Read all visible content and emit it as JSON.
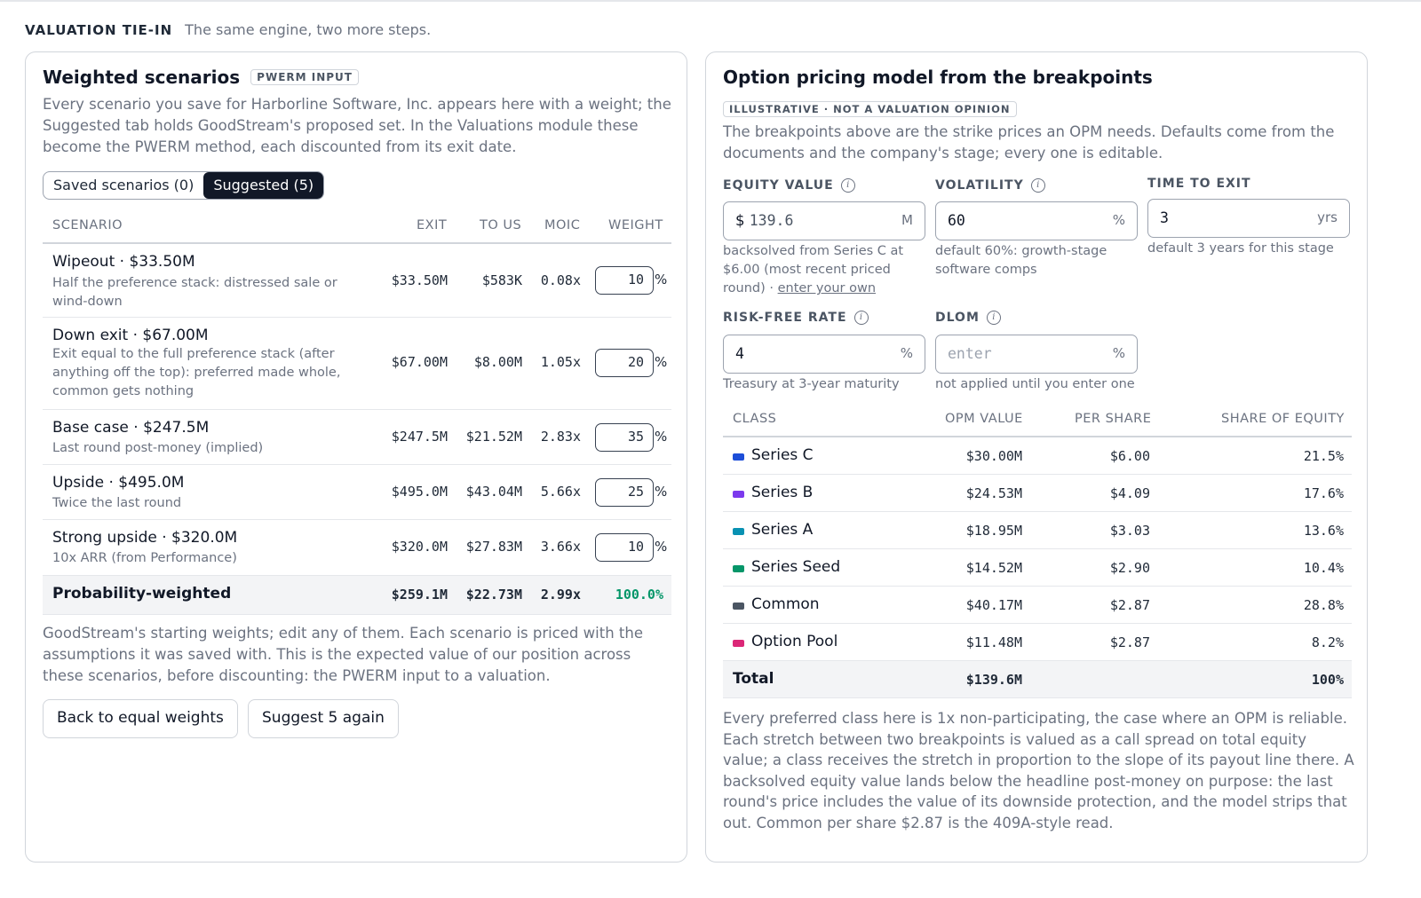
{
  "section": {
    "title": "VALUATION TIE-IN",
    "subtitle": "The same engine, two more steps."
  },
  "left": {
    "title": "Weighted scenarios",
    "badge": "PWERM INPUT",
    "intro": "Every scenario you save for Harborline Software, Inc. appears here with a weight; the Suggested tab holds GoodStream's proposed set. In the Valuations module these become the PWERM method, each discounted from its exit date.",
    "tabs": {
      "saved": "Saved scenarios (0)",
      "suggested": "Suggested (5)"
    },
    "columns": {
      "scenario": "SCENARIO",
      "exit": "EXIT",
      "to_us": "TO US",
      "moic": "MOIC",
      "weight": "WEIGHT"
    },
    "rows": [
      {
        "name": "Wipeout · $33.50M",
        "desc": "Half the preference stack: distressed sale or wind-down",
        "exit": "$33.50M",
        "to_us": "$583K",
        "moic": "0.08x",
        "weight": "10"
      },
      {
        "name": "Down exit · $67.00M",
        "desc": "Exit equal to the full preference stack (after anything off the top): preferred made whole, common gets nothing",
        "exit": "$67.00M",
        "to_us": "$8.00M",
        "moic": "1.05x",
        "weight": "20"
      },
      {
        "name": "Base case · $247.5M",
        "desc": "Last round post-money (implied)",
        "exit": "$247.5M",
        "to_us": "$21.52M",
        "moic": "2.83x",
        "weight": "35"
      },
      {
        "name": "Upside · $495.0M",
        "desc": "Twice the last round",
        "exit": "$495.0M",
        "to_us": "$43.04M",
        "moic": "5.66x",
        "weight": "25"
      },
      {
        "name": "Strong upside · $320.0M",
        "desc": "10x ARR (from Performance)",
        "exit": "$320.0M",
        "to_us": "$27.83M",
        "moic": "3.66x",
        "weight": "10"
      }
    ],
    "pct_sign": "%",
    "total": {
      "name": "Probability-weighted",
      "exit": "$259.1M",
      "to_us": "$22.73M",
      "moic": "2.99x",
      "weight": "100.0%"
    },
    "footnote": "GoodStream's starting weights; edit any of them. Each scenario is priced with the assumptions it was saved with. This is the expected value of our position across these scenarios, before discounting: the PWERM input to a valuation.",
    "buttons": {
      "equal": "Back to equal weights",
      "suggest": "Suggest 5 again"
    }
  },
  "right": {
    "title": "Option pricing model from the breakpoints",
    "badge": "ILLUSTRATIVE · NOT A VALUATION OPINION",
    "intro": "The breakpoints above are the strike prices an OPM needs. Defaults come from the documents and the company's stage; every one is editable.",
    "inputs": {
      "equity": {
        "label": "EQUITY VALUE",
        "prefix": "$",
        "value": "139.6",
        "unit": "M",
        "help": "backsolved from Series C at $6.00 (most recent priced round) · ",
        "link": "enter your own"
      },
      "vol": {
        "label": "VOLATILITY",
        "value": "60",
        "unit": "%",
        "help": "default 60%: growth-stage software comps"
      },
      "time": {
        "label": "TIME TO EXIT",
        "value": "3",
        "unit": "yrs",
        "help": "default 3 years for this stage"
      },
      "rfr": {
        "label": "RISK-FREE RATE",
        "value": "4",
        "unit": "%",
        "help": "Treasury at 3-year maturity"
      },
      "dlom": {
        "label": "DLOM",
        "placeholder": "enter",
        "unit": "%",
        "help": "not applied until you enter one"
      }
    },
    "columns": {
      "class": "CLASS",
      "opm": "OPM VALUE",
      "per_share": "PER SHARE",
      "share": "SHARE OF EQUITY"
    },
    "classes": [
      {
        "name": "Series C",
        "color": "#1d4ed8",
        "opm": "$30.00M",
        "per_share": "$6.00",
        "share": "21.5%"
      },
      {
        "name": "Series B",
        "color": "#7c3aed",
        "opm": "$24.53M",
        "per_share": "$4.09",
        "share": "17.6%"
      },
      {
        "name": "Series A",
        "color": "#0891b2",
        "opm": "$18.95M",
        "per_share": "$3.03",
        "share": "13.6%"
      },
      {
        "name": "Series Seed",
        "color": "#059669",
        "opm": "$14.52M",
        "per_share": "$2.90",
        "share": "10.4%"
      },
      {
        "name": "Common",
        "color": "#4b5563",
        "opm": "$40.17M",
        "per_share": "$2.87",
        "share": "28.8%"
      },
      {
        "name": "Option Pool",
        "color": "#db2777",
        "opm": "$11.48M",
        "per_share": "$2.87",
        "share": "8.2%"
      }
    ],
    "total": {
      "name": "Total",
      "opm": "$139.6M",
      "share": "100%"
    },
    "footnote": "Every preferred class here is 1x non-participating, the case where an OPM is reliable. Each stretch between two breakpoints is valued as a call spread on total equity value; a class receives the stretch in proportion to the slope of its payout line there. A backsolved equity value lands below the headline post-money on purpose: the last round's price includes the value of its downside protection, and the model strips that out. Common per share $2.87 is the 409A-style read."
  },
  "colors": {
    "accent_dark": "#111827",
    "weight_total_green": "#059669"
  }
}
